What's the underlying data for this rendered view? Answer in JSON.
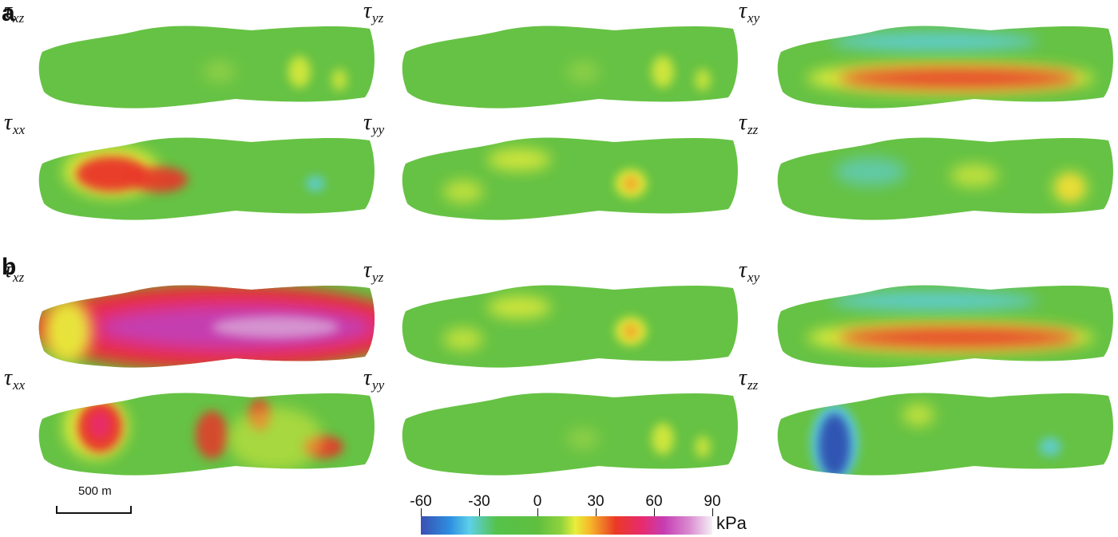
{
  "figure": {
    "panel_a_letter": "a",
    "panel_b_letter": "b",
    "panel_a": [
      {
        "symbol": "τ",
        "sub": "xz",
        "field": "weak"
      },
      {
        "symbol": "τ",
        "sub": "yz",
        "field": "weak"
      },
      {
        "symbol": "τ",
        "sub": "xy",
        "field": "band"
      },
      {
        "symbol": "τ",
        "sub": "xx",
        "field": "blob"
      },
      {
        "symbol": "τ",
        "sub": "yy",
        "field": "yellow"
      },
      {
        "symbol": "τ",
        "sub": "zz",
        "field": "cyan"
      }
    ],
    "panel_b": [
      {
        "symbol": "τ",
        "sub": "xz",
        "field": "high"
      },
      {
        "symbol": "τ",
        "sub": "yz",
        "field": "yellow"
      },
      {
        "symbol": "τ",
        "sub": "xy",
        "field": "band"
      },
      {
        "symbol": "τ",
        "sub": "xx",
        "field": "patchy"
      },
      {
        "symbol": "τ",
        "sub": "yy",
        "field": "weak"
      },
      {
        "symbol": "τ",
        "sub": "zz",
        "field": "blue"
      }
    ],
    "scale_bar": {
      "label": "500 m"
    },
    "colorbar": {
      "unit": "kPa",
      "ticks": [
        "-60",
        "-30",
        "0",
        "30",
        "60",
        "90"
      ],
      "min": -60,
      "max": 90
    },
    "colors": {
      "base_green": "#66c244",
      "yellow": "#e8ee3a",
      "red": "#e8342a",
      "magenta": "#c33fb4",
      "cyan": "#5fcfe6",
      "blue": "#2f4fb0"
    }
  }
}
